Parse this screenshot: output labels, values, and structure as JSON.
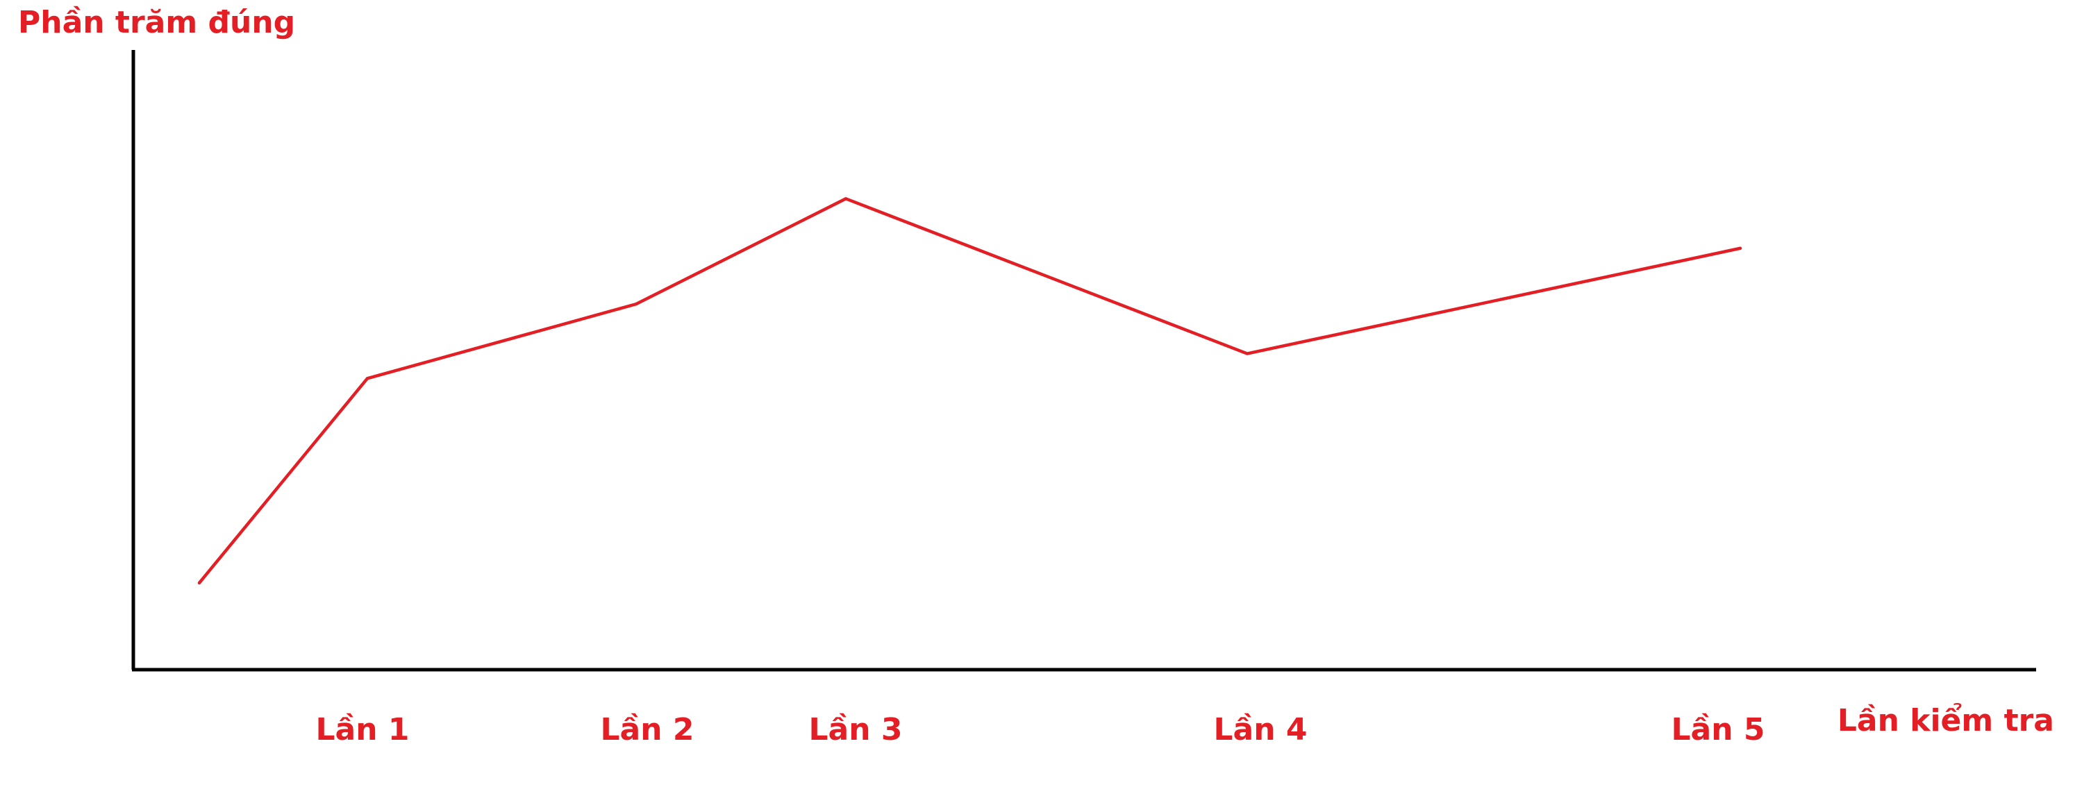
{
  "chart_data": {
    "type": "line",
    "ylabel": "Phần trăm đúng",
    "xlabel": "Lần kiểm tra",
    "grid": false,
    "y_axis_ticks_shown": false,
    "line_color": "#e31e24",
    "axis_color": "#000000",
    "label_color": "#e31e24",
    "ylim": [
      0,
      100
    ],
    "categories": [
      "Lần 1",
      "Lần 2",
      "Lần 3",
      "Lần 4",
      "Lần 5"
    ],
    "series": [
      {
        "x": [
          "",
          "Lần 1",
          "Lần 2",
          "Lần 3",
          "Lần 4",
          "Lần 5"
        ],
        "values": [
          14,
          47,
          59,
          76,
          51,
          68
        ]
      }
    ]
  }
}
